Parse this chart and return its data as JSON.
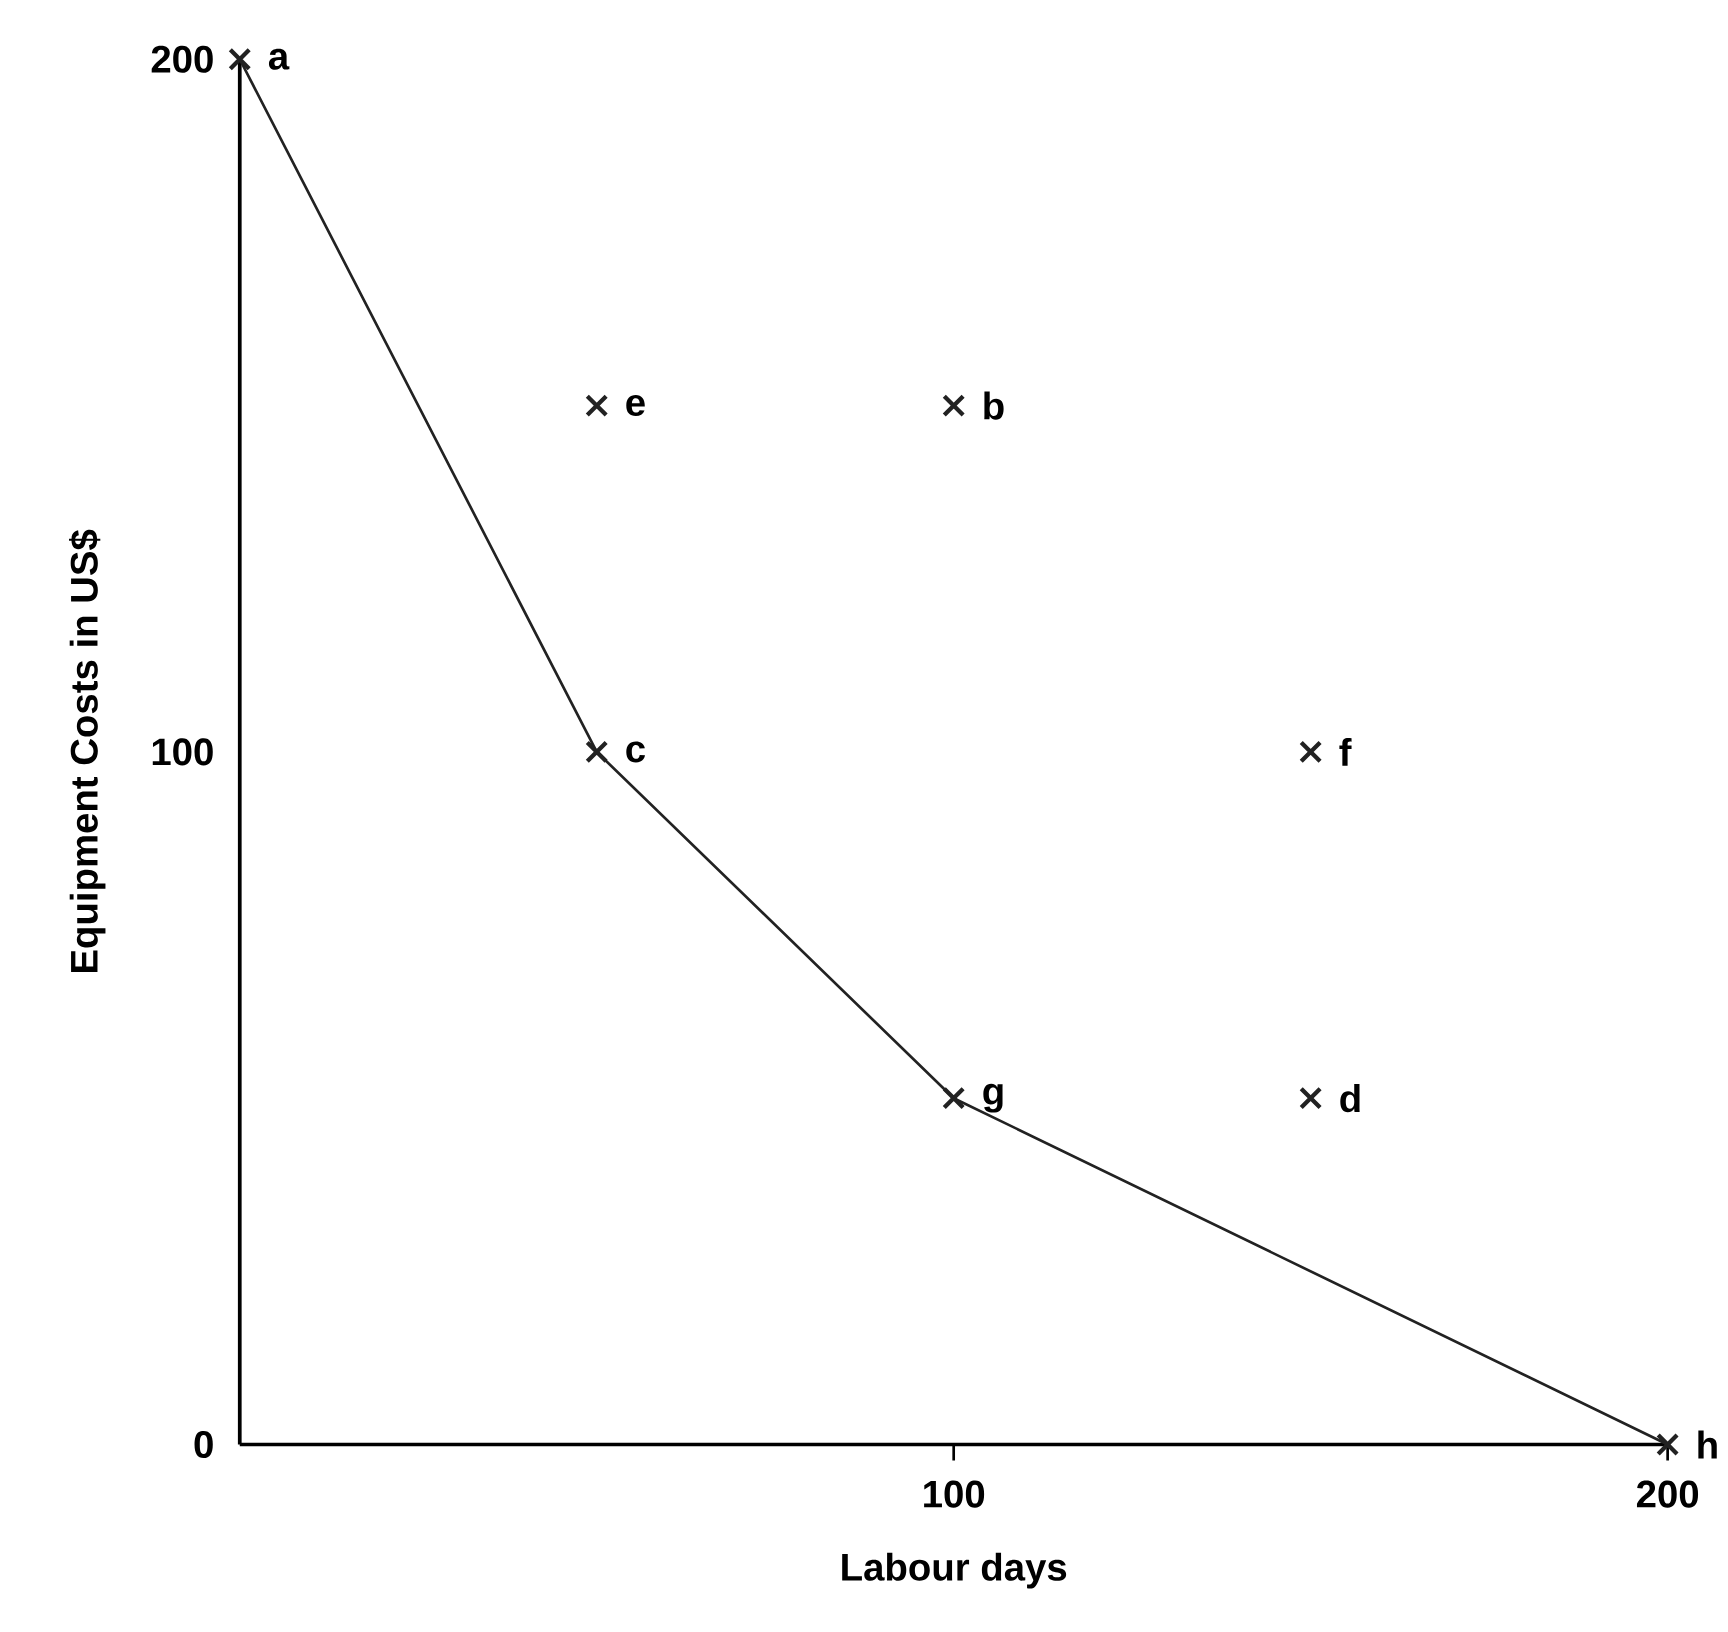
{
  "chart_data": {
    "type": "scatter",
    "xlabel": "Labour days",
    "ylabel": "Equipment Costs in US$",
    "xlim": [
      0,
      200
    ],
    "ylim": [
      0,
      200
    ],
    "xticks": [
      100,
      200
    ],
    "yticks": [
      0,
      100,
      200
    ],
    "grid": false,
    "legend": false,
    "series": [
      {
        "marker": "cross",
        "color": "#222222",
        "x": [
          0,
          50,
          100,
          50,
          150,
          100,
          150,
          200
        ],
        "values": [
          200,
          150,
          150,
          100,
          100,
          50,
          50,
          0
        ]
      },
      {
        "type": "line",
        "marker": "none",
        "line_style": "solid",
        "color": "#222222",
        "x": [
          0,
          50,
          100,
          200
        ],
        "values": [
          200,
          100,
          50,
          0
        ]
      }
    ],
    "annotations": [
      {
        "text": "a",
        "x": 0,
        "y": 200
      },
      {
        "text": "e",
        "x": 50,
        "y": 150
      },
      {
        "text": "b",
        "x": 100,
        "y": 150
      },
      {
        "text": "c",
        "x": 50,
        "y": 100
      },
      {
        "text": "f",
        "x": 150,
        "y": 100
      },
      {
        "text": "g",
        "x": 100,
        "y": 50
      },
      {
        "text": "d",
        "x": 150,
        "y": 50
      },
      {
        "text": "h",
        "x": 200,
        "y": 0
      }
    ]
  }
}
